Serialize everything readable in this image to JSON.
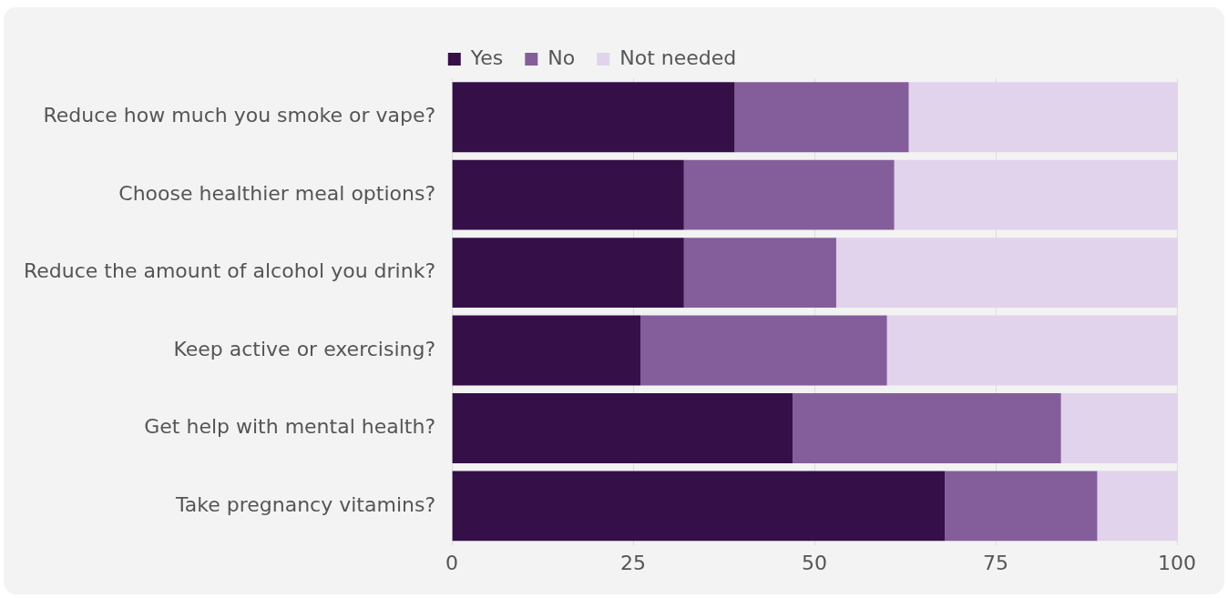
{
  "chart_data": {
    "type": "bar",
    "orientation": "horizontal",
    "stacked": true,
    "categories": [
      "Reduce how much you smoke or vape?",
      "Choose healthier meal options?",
      "Reduce the amount of alcohol you drink?",
      "Keep active or exercising?",
      "Get help with mental health?",
      "Take pregnancy vitamins?"
    ],
    "series": [
      {
        "name": "Yes",
        "color": "#350f48",
        "values": [
          39,
          32,
          32,
          26,
          47,
          68
        ]
      },
      {
        "name": "No",
        "color": "#845e9b",
        "values": [
          24,
          29,
          21,
          34,
          37,
          21
        ]
      },
      {
        "name": "Not needed",
        "color": "#e2d3ec",
        "values": [
          37,
          39,
          47,
          40,
          16,
          11
        ]
      }
    ],
    "xlim": [
      0,
      100
    ],
    "xticks": [
      0,
      25,
      50,
      75,
      100
    ],
    "grid": "x",
    "legend": "top"
  }
}
